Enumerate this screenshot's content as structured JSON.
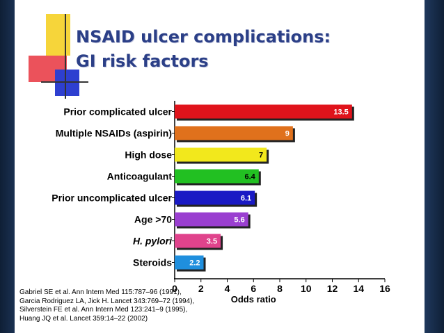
{
  "title": {
    "line1": "NSAID ulcer complications:",
    "line2": "GI risk factors"
  },
  "colors": {
    "title": "#2b3f87",
    "deco_yellow": "#f6d53a",
    "deco_red": "#e8343e",
    "deco_blue": "#2e3fd0"
  },
  "chart_data": {
    "type": "bar",
    "orientation": "horizontal",
    "categories": [
      "Prior complicated ulcer",
      "Multiple NSAIDs (aspirin)",
      "High dose",
      "Anticoagulant",
      "Prior uncomplicated ulcer",
      "Age >70",
      "H. pylori",
      "Steroids"
    ],
    "values": [
      13.5,
      9,
      7,
      6.4,
      6.1,
      5.6,
      3.5,
      2.2
    ],
    "value_labels": [
      "13.5",
      "9",
      "7",
      "6.4",
      "6.1",
      "5.6",
      "3.5",
      "2.2"
    ],
    "bar_colors": [
      "#e0131b",
      "#e0711c",
      "#f2e81c",
      "#22c022",
      "#1a1ac4",
      "#9a3fd0",
      "#e0438c",
      "#1f8fde"
    ],
    "xlabel": "Odds ratio",
    "xlim": [
      0,
      16
    ],
    "xticks": [
      "0",
      "2",
      "4",
      "6",
      "8",
      "10",
      "12",
      "14",
      "16"
    ],
    "grid": false,
    "legend": "none"
  },
  "references": [
    "Gabriel SE et al. Ann Intern Med 115:787–96 (1991),",
    "Garcia Rodriguez LA, Jick H. Lancet 343:769–72 (1994),",
    "Silverstein FE et al. Ann Intern Med 123:241–9 (1995),",
    "Huang JQ et al. Lancet 359:14–22 (2002)"
  ]
}
